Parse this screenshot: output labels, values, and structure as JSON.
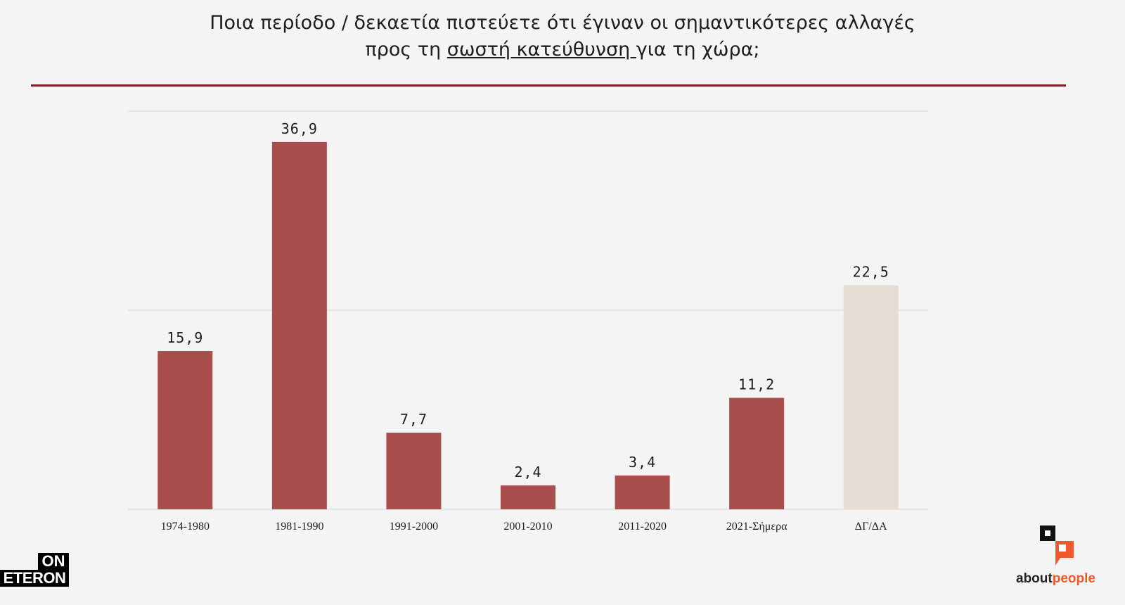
{
  "title": {
    "line1": "Ποια περίοδο / δεκαετία πιστεύετε ότι έγιναν οι σημαντικότερες αλλαγές",
    "line2_pre": "προς τη ",
    "line2_underlined": "σωστή κατεύθυνση ",
    "line2_post": "για τη χώρα;"
  },
  "colors": {
    "bar": "#a84f4d",
    "bar_dk_na": "#e5ddd4",
    "rule": "#7a1f1f",
    "grid": "#e4e4e4"
  },
  "chart_data": {
    "type": "bar",
    "categories": [
      "1974-1980",
      "1981-1990",
      "1991-2000",
      "2001-2010",
      "2011-2020",
      "2021-Σήμερα",
      "ΔΓ/ΔΑ"
    ],
    "values": [
      15.9,
      36.9,
      7.7,
      2.4,
      3.4,
      11.2,
      22.5
    ],
    "data_labels": [
      "15,9",
      "36,9",
      "7,7",
      "2,4",
      "3,4",
      "11,2",
      "22,5"
    ],
    "ylim": [
      0,
      40
    ],
    "gridlines": [
      0,
      20,
      40
    ],
    "grid": true,
    "legend": "none"
  },
  "logos": {
    "left_top": "ON",
    "left_bottom": "ETERON",
    "right_a": "about",
    "right_b": "people"
  }
}
